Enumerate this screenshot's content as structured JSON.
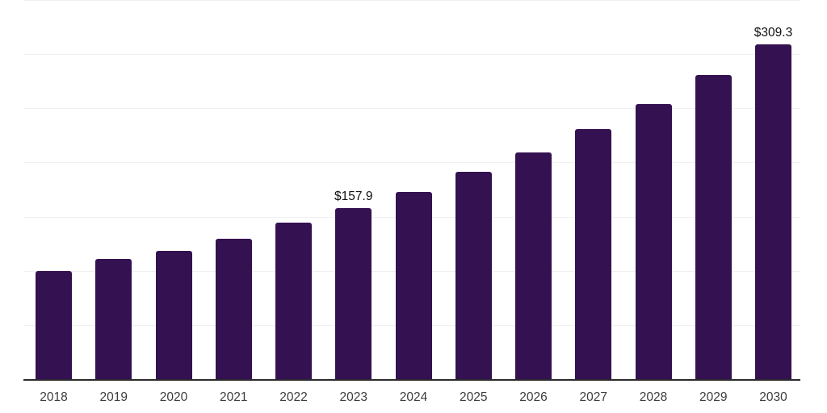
{
  "chart_data": {
    "type": "bar",
    "title": "",
    "xlabel": "",
    "ylabel": "",
    "categories": [
      "2018",
      "2019",
      "2020",
      "2021",
      "2022",
      "2023",
      "2024",
      "2025",
      "2026",
      "2027",
      "2028",
      "2029",
      "2030"
    ],
    "values": [
      99.5,
      111.0,
      118.4,
      129.6,
      144.5,
      157.9,
      172.8,
      191.4,
      209.6,
      230.9,
      254.2,
      280.5,
      309.3
    ],
    "value_labels": [
      "",
      "",
      "",
      "",
      "",
      "$157.9",
      "",
      "",
      "",
      "",
      "",
      "",
      "$309.3"
    ],
    "ylim": [
      0,
      350
    ],
    "gridline_step": 50,
    "grid": "horizontal",
    "y_axis_tick_labels_visible": false,
    "legend_position": "none",
    "colors": {
      "bar": "#341150",
      "axis_line": "#2b2b2b",
      "gridline": "#f0f0f0",
      "tick_label": "#3d3d3d",
      "value_label": "#111111",
      "background": "#ffffff"
    }
  }
}
